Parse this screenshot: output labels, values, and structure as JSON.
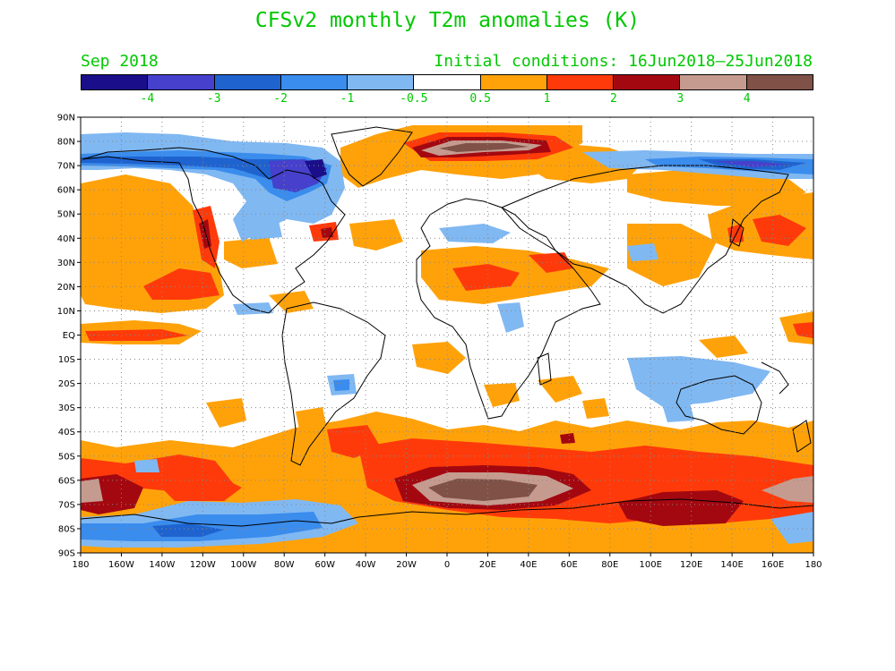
{
  "title": "CFSv2 monthly T2m anomalies (K)",
  "valid_month": "Sep 2018",
  "initial_conditions": "Initial conditions: 16Jun2018–25Jun2018",
  "colorbar": {
    "colors": [
      "#1a0e8a",
      "#4640cc",
      "#1f63cf",
      "#3a8ced",
      "#80b8f2",
      "#ffffff",
      "#ffa20a",
      "#ff3a0a",
      "#a30810",
      "#c69b8f",
      "#7f5147"
    ],
    "labels": [
      "-4",
      "-3",
      "-2",
      "-1",
      "-0.5",
      "0.5",
      "1",
      "2",
      "3",
      "4"
    ]
  },
  "axes": {
    "lat_labels": [
      "90N",
      "80N",
      "70N",
      "60N",
      "50N",
      "40N",
      "30N",
      "20N",
      "10N",
      "EQ",
      "10S",
      "20S",
      "30S",
      "40S",
      "50S",
      "60S",
      "70S",
      "80S",
      "90S"
    ],
    "lon_labels": [
      "180",
      "160W",
      "140W",
      "120W",
      "100W",
      "80W",
      "60W",
      "40W",
      "20W",
      "0",
      "20E",
      "40E",
      "60E",
      "80E",
      "100E",
      "120E",
      "140E",
      "160E",
      "180"
    ]
  }
}
